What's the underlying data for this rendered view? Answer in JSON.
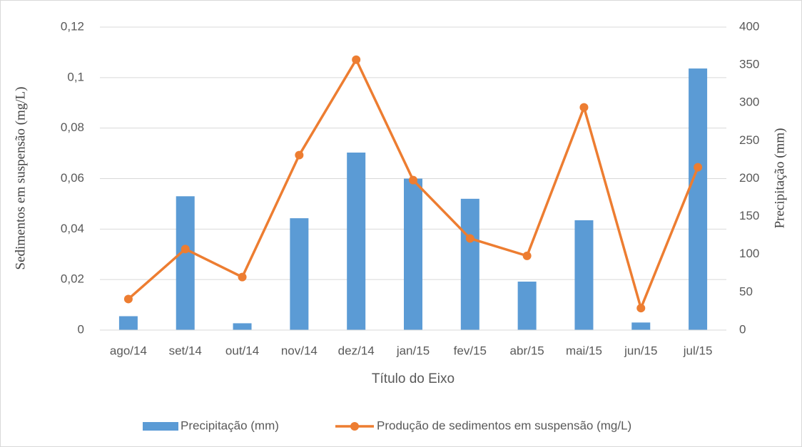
{
  "chart_data": {
    "type": "bar_line",
    "x_label": "Título do Eixo",
    "y_label": "Sedimentos em suspensão (mg/L)",
    "y2_label": "Precipitação (mm)",
    "categories": [
      "ago/14",
      "set/14",
      "out/14",
      "nov/14",
      "dez/14",
      "jan/15",
      "fev/15",
      "abr/15",
      "mai/15",
      "jun/15",
      "jul/15"
    ],
    "series": [
      {
        "name": "Precipitação (mm)",
        "type": "bar",
        "color": "#5b9bd5",
        "axis": "y",
        "values": [
          0.0055,
          0.053,
          0.0027,
          0.0443,
          0.0703,
          0.06,
          0.052,
          0.0192,
          0.0435,
          0.003,
          0.1036
        ]
      },
      {
        "name": "Produção de sedimentos em suspensão (mg/L)",
        "type": "line",
        "color": "#ed7d31",
        "axis": "y2",
        "values": [
          41,
          107,
          70,
          231,
          357,
          198,
          121,
          98,
          294,
          29,
          215
        ]
      }
    ],
    "ylim": [
      0,
      0.12
    ],
    "yticks": [
      0,
      {
        "value": 0.02,
        "label": "0,02"
      },
      {
        "value": 0.04,
        "label": "0,04"
      },
      {
        "value": 0.06,
        "label": "0,06"
      },
      {
        "value": 0.08,
        "label": "0,08"
      },
      {
        "value": 0.1,
        "label": "0,1"
      },
      {
        "value": 0.12,
        "label": "0,12"
      }
    ],
    "y2lim": [
      0,
      400
    ],
    "y2ticks": [
      0,
      50,
      100,
      150,
      200,
      250,
      300,
      350,
      400
    ],
    "grid": true,
    "legend": "bottom"
  }
}
